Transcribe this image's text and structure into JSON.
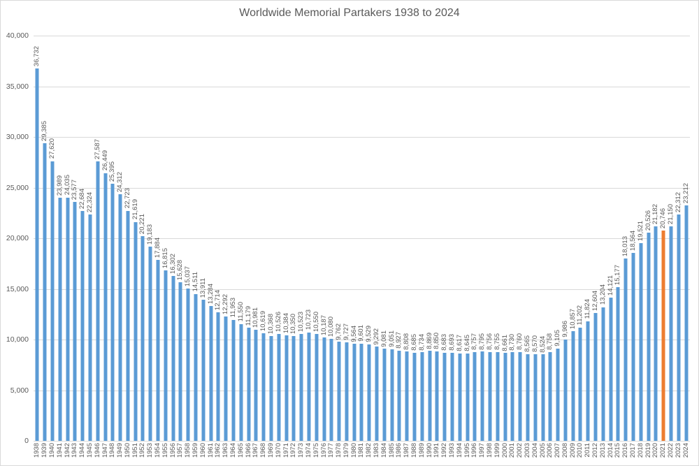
{
  "chart_data": {
    "type": "bar",
    "title": "Worldwide Memorial Partakers 1938 to 2024",
    "xlabel": "",
    "ylabel": "",
    "ylim": [
      0,
      40000
    ],
    "ytick_step": 5000,
    "ytick_labels": [
      "0",
      "5,000",
      "10,000",
      "15,000",
      "20,000",
      "25,000",
      "30,000",
      "35,000",
      "40,000"
    ],
    "grid": true,
    "legend": "none",
    "data_labels": "rotated-90-above-bars",
    "x_tick_rotation": -90,
    "bar_color": "#5B9BD5",
    "highlight_color": "#ED7D31",
    "highlight_category": "2021",
    "categories": [
      "1938",
      "1939",
      "1940",
      "1941",
      "1942",
      "1943",
      "1944",
      "1945",
      "1946",
      "1947",
      "1948",
      "1949",
      "1950",
      "1951",
      "1952",
      "1953",
      "1954",
      "1955",
      "1956",
      "1957",
      "1958",
      "1959",
      "1960",
      "1961",
      "1962",
      "1963",
      "1964",
      "1965",
      "1966",
      "1967",
      "1968",
      "1969",
      "1970",
      "1971",
      "1972",
      "1973",
      "1974",
      "1975",
      "1976",
      "1977",
      "1978",
      "1979",
      "1980",
      "1981",
      "1982",
      "1983",
      "1984",
      "1985",
      "1986",
      "1987",
      "1988",
      "1989",
      "1990",
      "1991",
      "1992",
      "1993",
      "1994",
      "1995",
      "1996",
      "1997",
      "1998",
      "1999",
      "2000",
      "2001",
      "2002",
      "2003",
      "2004",
      "2005",
      "2006",
      "2007",
      "2008",
      "2009",
      "2010",
      "2011",
      "2012",
      "2013",
      "2014",
      "2015",
      "2016",
      "2017",
      "2018",
      "2019",
      "2020",
      "2021",
      "2022",
      "2023",
      "2024"
    ],
    "values": [
      36732,
      29385,
      27620,
      23989,
      24035,
      23577,
      22684,
      22324,
      27587,
      26449,
      25395,
      24312,
      22723,
      21619,
      20221,
      19183,
      17884,
      16815,
      16302,
      15628,
      15037,
      14511,
      13911,
      13284,
      12714,
      12292,
      11953,
      11550,
      11179,
      10981,
      10619,
      10368,
      10526,
      10384,
      10350,
      10523,
      10723,
      10550,
      10187,
      10080,
      9762,
      9727,
      9564,
      9601,
      9529,
      9292,
      9081,
      9051,
      8927,
      8808,
      8685,
      8734,
      8869,
      8850,
      8683,
      8693,
      8617,
      8645,
      8757,
      8795,
      8756,
      8755,
      8661,
      8730,
      8760,
      8565,
      8570,
      8524,
      8758,
      9105,
      9986,
      10857,
      11202,
      11824,
      12604,
      13204,
      14121,
      15177,
      18013,
      18564,
      19521,
      20526,
      21182,
      20746,
      21150,
      22312,
      23212
    ]
  },
  "colors": {
    "text": "#595959",
    "gridline": "#D9D9D9",
    "background": "#FFFFFF",
    "border": "#D9D9D9"
  }
}
